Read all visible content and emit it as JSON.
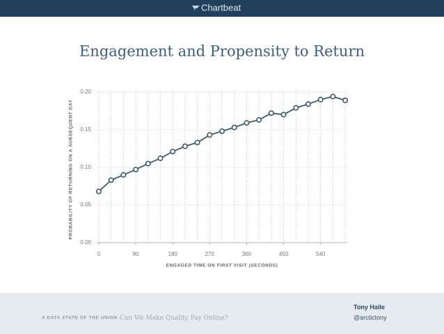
{
  "header": {
    "logo": "Chartbeat"
  },
  "chart_data": {
    "type": "line",
    "title": "Engagement and Propensity to Return",
    "x_label": "ENGAGED TIME ON FIRST VISIT (SECONDS)",
    "y_label": "PROBABILITY OF RETURNING ON A SUBSEQUENT DAY",
    "x": [
      0,
      30,
      60,
      90,
      120,
      150,
      180,
      210,
      240,
      270,
      300,
      330,
      360,
      390,
      420,
      450,
      480,
      510,
      540,
      570,
      600
    ],
    "series": [
      {
        "name": "Probability of returning",
        "color": "#3d5a6e",
        "values": [
          0.068,
          0.083,
          0.09,
          0.097,
          0.105,
          0.112,
          0.121,
          0.128,
          0.133,
          0.143,
          0.148,
          0.153,
          0.159,
          0.163,
          0.172,
          0.17,
          0.179,
          0.184,
          0.19,
          0.194,
          0.189
        ]
      }
    ],
    "xlim": [
      -5,
      605
    ],
    "xticks": [
      0,
      90,
      180,
      270,
      360,
      450,
      540
    ],
    "ylim": [
      0,
      0.2
    ],
    "yticks": [
      {
        "value": 0,
        "label": "0.00"
      },
      0.05,
      {
        "value": 0.1,
        "label": "0.10"
      },
      0.15,
      {
        "value": 0.2,
        "label": "0.20"
      }
    ],
    "grid": true
  },
  "footer": {
    "tagline": "A DATA STATE OF THE UNION",
    "subtitle": "Can We Make Quality Pay Online?",
    "author": "Tony Haile",
    "handle": "@arctictony"
  }
}
